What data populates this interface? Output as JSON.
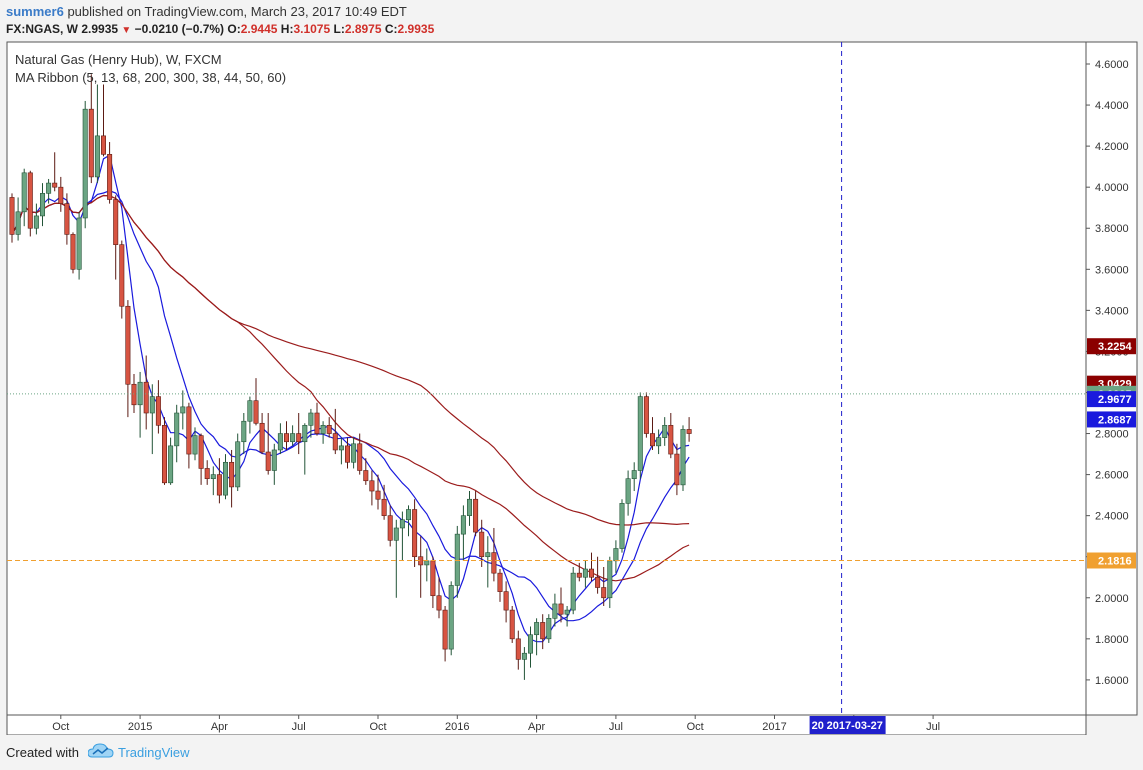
{
  "header": {
    "author": "summer6",
    "published_text": "published on TradingView.com, March 23, 2017 10:49 EDT",
    "symbol": "FX:NGAS, W",
    "last": "2.9935",
    "change": "−0.0210 (−0.7%)",
    "o_label": "O:",
    "o_value": "2.9445",
    "h_label": "H:",
    "h_value": "3.1075",
    "l_label": "L:",
    "l_value": "2.8975",
    "c_label": "C:",
    "c_value": "2.9935"
  },
  "footer": {
    "created_with": "Created with",
    "brand": "TradingView"
  },
  "colors": {
    "up": "#6ba583",
    "down": "#d75442",
    "wick_up": "#225437",
    "wick_down": "#5b1a13",
    "ma_blue": "#1a1add",
    "ma_red": "#9b1c1c",
    "support": "#f0a030",
    "cursor": "#2020cc"
  },
  "chart_data": {
    "type": "candlestick",
    "title": "Natural Gas (Henry Hub), W, FXCM",
    "subtitle": "MA Ribbon (5, 13, 68, 200, 300, 38, 44, 50, 60)",
    "ylim": [
      1.45,
      4.7
    ],
    "y_ticks": [
      "4.6000",
      "4.4000",
      "4.2000",
      "4.0000",
      "3.8000",
      "3.6000",
      "3.4000",
      "3.2000",
      "3.0000",
      "2.8000",
      "2.6000",
      "2.4000",
      "2.2000",
      "2.0000",
      "1.8000",
      "1.6000"
    ],
    "x_ticks": [
      {
        "label": "Oct",
        "i": 8
      },
      {
        "label": "2015",
        "i": 21
      },
      {
        "label": "Apr",
        "i": 34
      },
      {
        "label": "Jul",
        "i": 47
      },
      {
        "label": "Oct",
        "i": 60
      },
      {
        "label": "2016",
        "i": 73
      },
      {
        "label": "Apr",
        "i": 86
      },
      {
        "label": "Jul",
        "i": 99
      },
      {
        "label": "Oct",
        "i": 112
      },
      {
        "label": "2017",
        "i": 125
      },
      {
        "label": "Apr",
        "i": 138
      },
      {
        "label": "Jul",
        "i": 151
      }
    ],
    "price_labels": [
      {
        "value": 3.2254,
        "text": "3.2254",
        "color": "#8b0000"
      },
      {
        "value": 3.0429,
        "text": "3.0429",
        "color": "#8b0000"
      },
      {
        "value": 2.9935,
        "text": "2.9935",
        "color": "#6ba583"
      },
      {
        "value": 2.9677,
        "text": "2.9677",
        "color": "#1a1add"
      },
      {
        "value": 2.8687,
        "text": "2.8687",
        "color": "#1a1add"
      },
      {
        "value": 2.1816,
        "text": "2.1816",
        "color": "#f0a030"
      }
    ],
    "horizontal_line": 2.1816,
    "last_price": 2.9935,
    "cursor_index": 136,
    "cursor_date_label": "2017-03-27",
    "cursor_date_prefix": "20",
    "ohlc": [
      [
        3.95,
        3.97,
        3.73,
        3.77
      ],
      [
        3.77,
        3.95,
        3.74,
        3.88
      ],
      [
        3.88,
        4.09,
        3.81,
        4.07
      ],
      [
        4.07,
        4.08,
        3.76,
        3.8
      ],
      [
        3.8,
        3.92,
        3.77,
        3.86
      ],
      [
        3.86,
        4.02,
        3.81,
        3.97
      ],
      [
        3.97,
        4.04,
        3.92,
        4.02
      ],
      [
        4.02,
        4.17,
        3.98,
        4.0
      ],
      [
        4.0,
        4.05,
        3.88,
        3.92
      ],
      [
        3.92,
        3.97,
        3.72,
        3.77
      ],
      [
        3.77,
        3.78,
        3.58,
        3.6
      ],
      [
        3.6,
        3.88,
        3.55,
        3.85
      ],
      [
        3.85,
        4.42,
        3.8,
        4.38
      ],
      [
        4.38,
        4.55,
        4.02,
        4.05
      ],
      [
        4.05,
        4.5,
        4.02,
        4.25
      ],
      [
        4.25,
        4.5,
        4.15,
        4.16
      ],
      [
        4.16,
        4.22,
        3.92,
        3.94
      ],
      [
        3.94,
        3.96,
        3.55,
        3.72
      ],
      [
        3.72,
        3.74,
        3.36,
        3.42
      ],
      [
        3.42,
        3.45,
        2.88,
        3.04
      ],
      [
        3.04,
        3.09,
        2.9,
        2.94
      ],
      [
        2.94,
        3.1,
        2.78,
        3.05
      ],
      [
        3.05,
        3.18,
        2.82,
        2.9
      ],
      [
        2.9,
        3.04,
        2.7,
        2.98
      ],
      [
        2.98,
        3.06,
        2.8,
        2.84
      ],
      [
        2.84,
        2.88,
        2.55,
        2.56
      ],
      [
        2.56,
        2.78,
        2.55,
        2.74
      ],
      [
        2.74,
        2.94,
        2.66,
        2.9
      ],
      [
        2.9,
        3.01,
        2.82,
        2.93
      ],
      [
        2.93,
        2.95,
        2.63,
        2.7
      ],
      [
        2.7,
        2.83,
        2.67,
        2.79
      ],
      [
        2.79,
        2.8,
        2.55,
        2.63
      ],
      [
        2.63,
        2.67,
        2.55,
        2.58
      ],
      [
        2.58,
        2.64,
        2.5,
        2.6
      ],
      [
        2.6,
        2.68,
        2.46,
        2.5
      ],
      [
        2.5,
        2.7,
        2.48,
        2.66
      ],
      [
        2.66,
        2.72,
        2.44,
        2.54
      ],
      [
        2.54,
        2.8,
        2.52,
        2.76
      ],
      [
        2.76,
        2.9,
        2.7,
        2.86
      ],
      [
        2.86,
        2.98,
        2.8,
        2.96
      ],
      [
        2.96,
        3.07,
        2.84,
        2.85
      ],
      [
        2.85,
        2.9,
        2.7,
        2.71
      ],
      [
        2.71,
        2.9,
        2.6,
        2.62
      ],
      [
        2.62,
        2.75,
        2.55,
        2.72
      ],
      [
        2.72,
        2.85,
        2.7,
        2.8
      ],
      [
        2.8,
        2.86,
        2.72,
        2.76
      ],
      [
        2.76,
        2.84,
        2.74,
        2.8
      ],
      [
        2.8,
        2.9,
        2.7,
        2.76
      ],
      [
        2.76,
        2.85,
        2.6,
        2.84
      ],
      [
        2.84,
        2.92,
        2.78,
        2.9
      ],
      [
        2.9,
        2.95,
        2.79,
        2.8
      ],
      [
        2.8,
        2.86,
        2.75,
        2.84
      ],
      [
        2.84,
        2.88,
        2.78,
        2.8
      ],
      [
        2.8,
        2.92,
        2.7,
        2.72
      ],
      [
        2.72,
        2.78,
        2.65,
        2.74
      ],
      [
        2.74,
        2.78,
        2.63,
        2.66
      ],
      [
        2.66,
        2.78,
        2.63,
        2.75
      ],
      [
        2.75,
        2.8,
        2.6,
        2.62
      ],
      [
        2.62,
        2.68,
        2.55,
        2.57
      ],
      [
        2.57,
        2.62,
        2.45,
        2.52
      ],
      [
        2.52,
        2.6,
        2.43,
        2.48
      ],
      [
        2.48,
        2.55,
        2.38,
        2.4
      ],
      [
        2.4,
        2.45,
        2.25,
        2.28
      ],
      [
        2.28,
        2.38,
        2.0,
        2.34
      ],
      [
        2.34,
        2.42,
        2.18,
        2.38
      ],
      [
        2.38,
        2.45,
        2.3,
        2.43
      ],
      [
        2.43,
        2.48,
        2.15,
        2.2
      ],
      [
        2.2,
        2.3,
        2.0,
        2.16
      ],
      [
        2.16,
        2.24,
        2.08,
        2.18
      ],
      [
        2.18,
        2.2,
        1.95,
        2.01
      ],
      [
        2.01,
        2.1,
        1.9,
        1.94
      ],
      [
        1.94,
        1.96,
        1.69,
        1.75
      ],
      [
        1.75,
        2.08,
        1.72,
        2.06
      ],
      [
        2.06,
        2.35,
        2.0,
        2.31
      ],
      [
        2.31,
        2.45,
        2.18,
        2.4
      ],
      [
        2.4,
        2.52,
        2.35,
        2.48
      ],
      [
        2.48,
        2.52,
        2.3,
        2.32
      ],
      [
        2.32,
        2.38,
        2.15,
        2.2
      ],
      [
        2.2,
        2.3,
        2.05,
        2.22
      ],
      [
        2.22,
        2.34,
        2.08,
        2.12
      ],
      [
        2.12,
        2.14,
        1.98,
        2.03
      ],
      [
        2.03,
        2.08,
        1.88,
        1.94
      ],
      [
        1.94,
        1.96,
        1.78,
        1.8
      ],
      [
        1.8,
        1.84,
        1.65,
        1.7
      ],
      [
        1.7,
        1.76,
        1.6,
        1.73
      ],
      [
        1.73,
        1.86,
        1.66,
        1.82
      ],
      [
        1.82,
        1.9,
        1.72,
        1.88
      ],
      [
        1.88,
        1.92,
        1.75,
        1.8
      ],
      [
        1.8,
        1.92,
        1.78,
        1.9
      ],
      [
        1.9,
        2.02,
        1.86,
        1.97
      ],
      [
        1.97,
        2.05,
        1.88,
        1.92
      ],
      [
        1.92,
        1.96,
        1.86,
        1.94
      ],
      [
        1.94,
        2.15,
        1.92,
        2.12
      ],
      [
        2.12,
        2.17,
        2.08,
        2.1
      ],
      [
        2.1,
        2.18,
        2.05,
        2.14
      ],
      [
        2.14,
        2.22,
        2.08,
        2.1
      ],
      [
        2.1,
        2.2,
        2.02,
        2.05
      ],
      [
        2.05,
        2.15,
        1.96,
        2.0
      ],
      [
        2.0,
        2.2,
        1.95,
        2.18
      ],
      [
        2.18,
        2.28,
        2.12,
        2.24
      ],
      [
        2.24,
        2.48,
        2.22,
        2.46
      ],
      [
        2.46,
        2.62,
        2.4,
        2.58
      ],
      [
        2.58,
        2.66,
        2.52,
        2.62
      ],
      [
        2.62,
        3.0,
        2.58,
        2.98
      ],
      [
        2.98,
        3.0,
        2.78,
        2.8
      ],
      [
        2.8,
        2.88,
        2.72,
        2.74
      ],
      [
        2.74,
        2.82,
        2.7,
        2.78
      ],
      [
        2.78,
        2.88,
        2.74,
        2.84
      ],
      [
        2.84,
        2.9,
        2.68,
        2.7
      ],
      [
        2.7,
        2.75,
        2.5,
        2.55
      ],
      [
        2.55,
        2.84,
        2.52,
        2.82
      ],
      [
        2.82,
        2.88,
        2.76,
        2.8
      ]
    ]
  }
}
